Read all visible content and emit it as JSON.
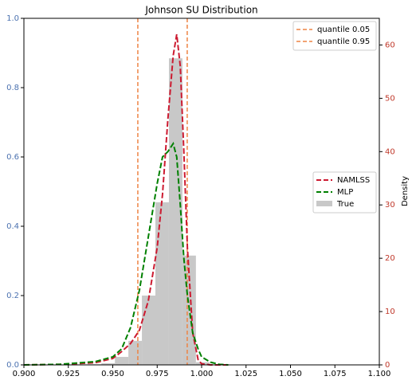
{
  "chart_data": {
    "type": "density",
    "title": "Johnson SU Distribution",
    "y2label": "Density",
    "xlim": [
      0.9,
      1.1
    ],
    "xticks": [
      {
        "value": 0.9,
        "label": "0.900"
      },
      {
        "value": 0.925,
        "label": "0.925"
      },
      {
        "value": 0.95,
        "label": "0.950"
      },
      {
        "value": 0.975,
        "label": "0.975"
      },
      {
        "value": 1.0,
        "label": "1.000"
      },
      {
        "value": 1.025,
        "label": "1.025"
      },
      {
        "value": 1.05,
        "label": "1.050"
      },
      {
        "value": 1.075,
        "label": "1.075"
      },
      {
        "value": 1.1,
        "label": "1.100"
      }
    ],
    "ylim": [
      0,
      1
    ],
    "yticks": [
      {
        "value": 0,
        "label": "0.0"
      },
      0.2,
      0.4,
      0.6,
      0.8,
      {
        "value": 1,
        "label": "1.0"
      }
    ],
    "y_tick_color": "#4c72b0",
    "y2lim": [
      0,
      65
    ],
    "y2ticks": [
      0,
      10,
      20,
      30,
      40,
      50,
      60
    ],
    "y2_tick_color": "#c0392b",
    "x": [
      0.9,
      0.92,
      0.94,
      0.95,
      0.955,
      0.96,
      0.965,
      0.97,
      0.975,
      0.978,
      0.981,
      0.984,
      0.986,
      0.988,
      0.99,
      0.992,
      0.995,
      0.998,
      1.0,
      1.005,
      1.01,
      1.015
    ],
    "series": [
      {
        "name": "NAMLSS",
        "color": "#cc1a30",
        "axis": "y2",
        "values": [
          0,
          0.1,
          0.4,
          1.2,
          2.5,
          4,
          6.5,
          12,
          22,
          32,
          46,
          58,
          62,
          56,
          40,
          22,
          6,
          1,
          0.2,
          0,
          0,
          0
        ]
      },
      {
        "name": "MLP",
        "color": "#008000",
        "axis": "y2",
        "values": [
          0,
          0.1,
          0.6,
          1.5,
          3,
          7,
          14,
          24,
          34,
          39,
          40,
          41.5,
          39,
          30,
          20,
          13,
          6,
          3,
          1.5,
          0.5,
          0.1,
          0
        ]
      }
    ],
    "histogram": {
      "name": "True",
      "color": "#c8c8c8",
      "axis": "y2",
      "bins": [
        0.936,
        0.9436,
        0.9512,
        0.9588,
        0.9664,
        0.974,
        0.9816,
        0.9892,
        0.9968,
        1.0044
      ],
      "counts": [
        0.1,
        0.3,
        1.5,
        4.5,
        13,
        30.5,
        57.5,
        20.5,
        0.5
      ]
    },
    "quantiles": [
      {
        "name": "quantile 0.05",
        "value": 0.9641,
        "color": "#ee8444"
      },
      {
        "name": "quantile 0.95",
        "value": 0.9919,
        "color": "#ee8444"
      }
    ]
  }
}
